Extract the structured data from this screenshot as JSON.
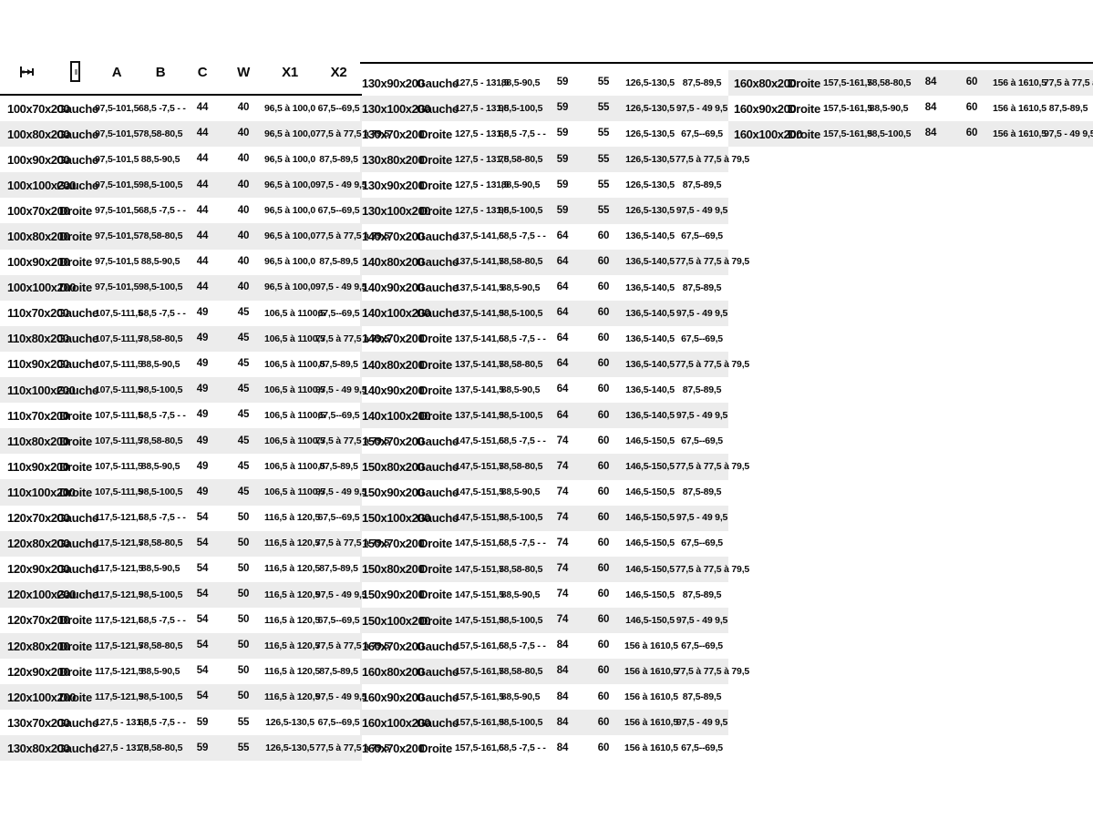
{
  "page": {
    "background": "#ffffff",
    "stripe_color": "#ececec",
    "rule_color": "#000000"
  },
  "header": {
    "icon1": "width-dimension-icon",
    "icon2": "door-icon",
    "labels": {
      "a": "A",
      "b": "B",
      "c": "C",
      "w": "W",
      "x1": "X1",
      "x2": "X2"
    }
  },
  "tables": [
    {
      "id": "left",
      "stripe_first": false,
      "rows": [
        [
          "100x70x200",
          "Gauche",
          "97,5-101,5",
          "68,5 -7,5 - -",
          "44",
          "40",
          "96,5 à 100,0",
          "67,5--69,5"
        ],
        [
          "100x80x200",
          "Gauche",
          "97,5-101,5",
          "78,58-80,5",
          "44",
          "40",
          "96,5 à 100,0",
          "77,5 à 77,5 à 79,5"
        ],
        [
          "100x90x200",
          "Gauche",
          "97,5-101,5",
          "88,5-90,5",
          "44",
          "40",
          "96,5 à 100,0",
          "87,5-89,5"
        ],
        [
          "100x100x200",
          "Gauche",
          "97,5-101,5",
          "98,5-100,5",
          "44",
          "40",
          "96,5 à 100,0",
          "97,5 - 49 9,5"
        ],
        [
          "100x70x200",
          "Droite",
          "97,5-101,5",
          "68,5 -7,5 - -",
          "44",
          "40",
          "96,5 à 100,0",
          "67,5--69,5"
        ],
        [
          "100x80x200",
          "Droite",
          "97,5-101,5",
          "78,58-80,5",
          "44",
          "40",
          "96,5 à 100,0",
          "77,5 à 77,5 à 79,5"
        ],
        [
          "100x90x200",
          "Droite",
          "97,5-101,5",
          "88,5-90,5",
          "44",
          "40",
          "96,5 à 100,0",
          "87,5-89,5"
        ],
        [
          "100x100x200",
          "Droite",
          "97,5-101,5",
          "98,5-100,5",
          "44",
          "40",
          "96,5 à 100,0",
          "97,5 - 49 9,5"
        ],
        [
          "110x70x200",
          "Gauche",
          "107,5-111,5",
          "68,5 -7,5 - -",
          "49",
          "45",
          "106,5 à 1100,5",
          "67,5--69,5"
        ],
        [
          "110x80x200",
          "Gauche",
          "107,5-111,5",
          "78,58-80,5",
          "49",
          "45",
          "106,5 à 1100,5",
          "77,5 à 77,5 à 79,5"
        ],
        [
          "110x90x200",
          "Gauche",
          "107,5-111,5",
          "88,5-90,5",
          "49",
          "45",
          "106,5 à 1100,5",
          "87,5-89,5"
        ],
        [
          "110x100x200",
          "Gauche",
          "107,5-111,5",
          "98,5-100,5",
          "49",
          "45",
          "106,5 à 1100,5",
          "97,5 - 49 9,5"
        ],
        [
          "110x70x200",
          "Droite",
          "107,5-111,5",
          "68,5 -7,5 - -",
          "49",
          "45",
          "106,5 à 1100,5",
          "67,5--69,5"
        ],
        [
          "110x80x200",
          "Droite",
          "107,5-111,5",
          "78,58-80,5",
          "49",
          "45",
          "106,5 à 1100,5",
          "77,5 à 77,5 à 79,5"
        ],
        [
          "110x90x200",
          "Droite",
          "107,5-111,5",
          "88,5-90,5",
          "49",
          "45",
          "106,5 à 1100,5",
          "87,5-89,5"
        ],
        [
          "110x100x200",
          "Droite",
          "107,5-111,5",
          "98,5-100,5",
          "49",
          "45",
          "106,5 à 1100,5",
          "97,5 - 49 9,5"
        ],
        [
          "120x70x200",
          "Gauche",
          "117,5-121,5",
          "68,5 -7,5 - -",
          "54",
          "50",
          "116,5 à 120,5",
          "67,5--69,5"
        ],
        [
          "120x80x200",
          "Gauche",
          "117,5-121,5",
          "78,58-80,5",
          "54",
          "50",
          "116,5 à 120,5",
          "77,5 à 77,5 à 79,5"
        ],
        [
          "120x90x200",
          "Gauche",
          "117,5-121,5",
          "88,5-90,5",
          "54",
          "50",
          "116,5 à 120,5",
          "87,5-89,5"
        ],
        [
          "120x100x200",
          "Gauche",
          "117,5-121,5",
          "98,5-100,5",
          "54",
          "50",
          "116,5 à 120,5",
          "97,5 - 49 9,5"
        ],
        [
          "120x70x200",
          "Droite",
          "117,5-121,5",
          "68,5 -7,5 - -",
          "54",
          "50",
          "116,5 à 120,5",
          "67,5--69,5"
        ],
        [
          "120x80x200",
          "Droite",
          "117,5-121,5",
          "78,58-80,5",
          "54",
          "50",
          "116,5 à 120,5",
          "77,5 à 77,5 à 79,5"
        ],
        [
          "120x90x200",
          "Droite",
          "117,5-121,5",
          "88,5-90,5",
          "54",
          "50",
          "116,5 à 120,5",
          "87,5-89,5"
        ],
        [
          "120x100x200",
          "Droite",
          "117,5-121,5",
          "98,5-100,5",
          "54",
          "50",
          "116,5 à 120,5",
          "97,5 - 49 9,5"
        ],
        [
          "130x70x200",
          "Gauche",
          "127,5 - 131,5",
          "68,5 -7,5 - -",
          "59",
          "55",
          "126,5-130,5",
          "67,5--69,5"
        ],
        [
          "130x80x200",
          "Gauche",
          "127,5 - 131,5",
          "78,58-80,5",
          "59",
          "55",
          "126,5-130,5",
          "77,5 à 77,5 à 79,5"
        ]
      ]
    },
    {
      "id": "middle",
      "stripe_first": false,
      "rows": [
        [
          "130x90x200",
          "Gauche",
          "127,5 - 131,5",
          "88,5-90,5",
          "59",
          "55",
          "126,5-130,5",
          "87,5-89,5"
        ],
        [
          "130x100x200",
          "Gauche",
          "127,5 - 131,5",
          "98,5-100,5",
          "59",
          "55",
          "126,5-130,5",
          "97,5 - 49 9,5"
        ],
        [
          "130x70x200",
          "Droite",
          "127,5 - 131,5",
          "68,5 -7,5 - -",
          "59",
          "55",
          "126,5-130,5",
          "67,5--69,5"
        ],
        [
          "130x80x200",
          "Droite",
          "127,5 - 131,5",
          "78,58-80,5",
          "59",
          "55",
          "126,5-130,5",
          "77,5 à 77,5 à 79,5"
        ],
        [
          "130x90x200",
          "Droite",
          "127,5 - 131,5",
          "88,5-90,5",
          "59",
          "55",
          "126,5-130,5",
          "87,5-89,5"
        ],
        [
          "130x100x200",
          "Droite",
          "127,5 - 131,5",
          "98,5-100,5",
          "59",
          "55",
          "126,5-130,5",
          "97,5 - 49 9,5"
        ],
        [
          "140x70x200",
          "Gauche",
          "137,5-141,5",
          "68,5 -7,5 - -",
          "64",
          "60",
          "136,5-140,5",
          "67,5--69,5"
        ],
        [
          "140x80x200",
          "Gauche",
          "137,5-141,5",
          "78,58-80,5",
          "64",
          "60",
          "136,5-140,5",
          "77,5 à 77,5 à 79,5"
        ],
        [
          "140x90x200",
          "Gauche",
          "137,5-141,5",
          "88,5-90,5",
          "64",
          "60",
          "136,5-140,5",
          "87,5-89,5"
        ],
        [
          "140x100x200",
          "Gauche",
          "137,5-141,5",
          "98,5-100,5",
          "64",
          "60",
          "136,5-140,5",
          "97,5 - 49 9,5"
        ],
        [
          "140x70x200",
          "Droite",
          "137,5-141,5",
          "68,5 -7,5 - -",
          "64",
          "60",
          "136,5-140,5",
          "67,5--69,5"
        ],
        [
          "140x80x200",
          "Droite",
          "137,5-141,5",
          "78,58-80,5",
          "64",
          "60",
          "136,5-140,5",
          "77,5 à 77,5 à 79,5"
        ],
        [
          "140x90x200",
          "Droite",
          "137,5-141,5",
          "88,5-90,5",
          "64",
          "60",
          "136,5-140,5",
          "87,5-89,5"
        ],
        [
          "140x100x200",
          "Droite",
          "137,5-141,5",
          "98,5-100,5",
          "64",
          "60",
          "136,5-140,5",
          "97,5 - 49 9,5"
        ],
        [
          "150x70x200",
          "Gauche",
          "147,5-151,5",
          "68,5 -7,5 - -",
          "74",
          "60",
          "146,5-150,5",
          "67,5--69,5"
        ],
        [
          "150x80x200",
          "Gauche",
          "147,5-151,5",
          "78,58-80,5",
          "74",
          "60",
          "146,5-150,5",
          "77,5 à 77,5 à 79,5"
        ],
        [
          "150x90x200",
          "Gauche",
          "147,5-151,5",
          "88,5-90,5",
          "74",
          "60",
          "146,5-150,5",
          "87,5-89,5"
        ],
        [
          "150x100x200",
          "Gauche",
          "147,5-151,5",
          "98,5-100,5",
          "74",
          "60",
          "146,5-150,5",
          "97,5 - 49 9,5"
        ],
        [
          "150x70x200",
          "Droite",
          "147,5-151,5",
          "68,5 -7,5 - -",
          "74",
          "60",
          "146,5-150,5",
          "67,5--69,5"
        ],
        [
          "150x80x200",
          "Droite",
          "147,5-151,5",
          "78,58-80,5",
          "74",
          "60",
          "146,5-150,5",
          "77,5 à 77,5 à 79,5"
        ],
        [
          "150x90x200",
          "Droite",
          "147,5-151,5",
          "88,5-90,5",
          "74",
          "60",
          "146,5-150,5",
          "87,5-89,5"
        ],
        [
          "150x100x200",
          "Droite",
          "147,5-151,5",
          "98,5-100,5",
          "74",
          "60",
          "146,5-150,5",
          "97,5 - 49 9,5"
        ],
        [
          "160x70x200",
          "Gauche",
          "157,5-161,5",
          "68,5 -7,5 - -",
          "84",
          "60",
          "156 à 1610,5",
          "67,5--69,5"
        ],
        [
          "160x80x200",
          "Gauche",
          "157,5-161,5",
          "78,58-80,5",
          "84",
          "60",
          "156 à 1610,5",
          "77,5 à 77,5 à 79,5"
        ],
        [
          "160x90x200",
          "Gauche",
          "157,5-161,5",
          "88,5-90,5",
          "84",
          "60",
          "156 à 1610,5",
          "87,5-89,5"
        ],
        [
          "160x100x200",
          "Gauche",
          "157,5-161,5",
          "98,5-100,5",
          "84",
          "60",
          "156 à 1610,5",
          "97,5 - 49 9,5"
        ],
        [
          "160x70x200",
          "Droite",
          "157,5-161,5",
          "68,5 -7,5 - -",
          "84",
          "60",
          "156 à 1610,5",
          "67,5--69,5"
        ]
      ]
    },
    {
      "id": "right",
      "stripe_first": true,
      "rows": [
        [
          "160x80x200",
          "Droite",
          "157,5-161,5",
          "78,58-80,5",
          "84",
          "60",
          "156 à 1610,5",
          "77,5 à 77,5 à 79,5"
        ],
        [
          "160x90x200",
          "Droite",
          "157,5-161,5",
          "88,5-90,5",
          "84",
          "60",
          "156 à 1610,5",
          "87,5-89,5"
        ],
        [
          "160x100x200",
          "Droite",
          "157,5-161,5",
          "98,5-100,5",
          "84",
          "60",
          "156 à 1610,5",
          "97,5 - 49 9,5"
        ]
      ]
    }
  ]
}
